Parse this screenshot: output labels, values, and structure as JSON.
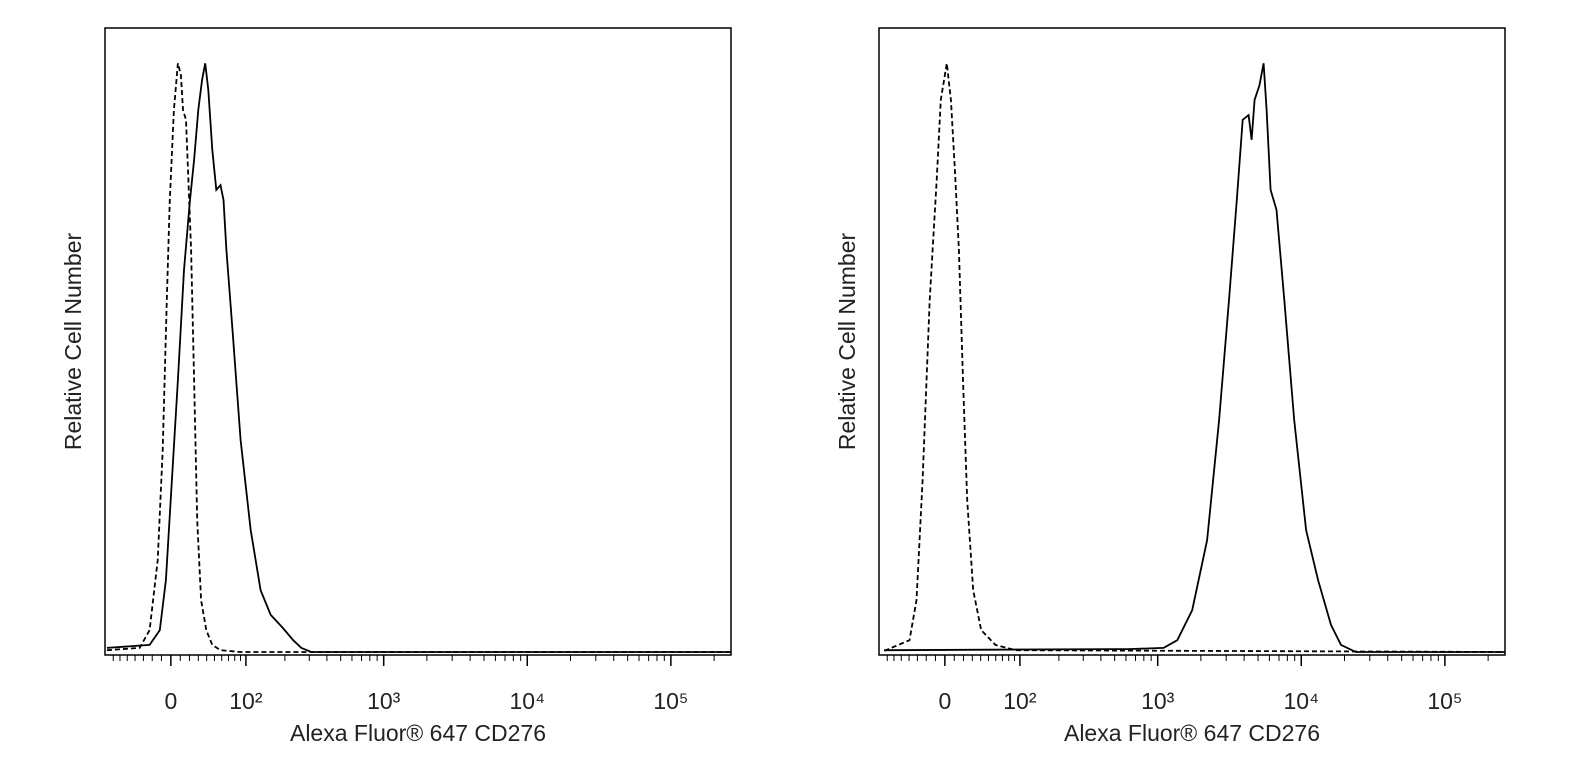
{
  "chart_data": [
    {
      "type": "line",
      "xlabel": "Alexa Fluor® 647 CD276",
      "ylabel": "Relative Cell Number",
      "xscale": "asinh",
      "xlim": [
        -80,
        262144
      ],
      "ylim": [
        0,
        106
      ],
      "xticks": [
        {
          "value": 0,
          "label": "0"
        },
        {
          "value": 100,
          "label": "10²"
        },
        {
          "value": 1000,
          "label": "10³"
        },
        {
          "value": 10000,
          "label": "10⁴"
        },
        {
          "value": 100000,
          "label": "10⁵"
        }
      ],
      "xminor": [
        -70,
        -60,
        -50,
        -40,
        -30,
        -20,
        -10,
        10,
        20,
        30,
        40,
        50,
        60,
        70,
        80,
        90,
        200,
        300,
        400,
        500,
        600,
        700,
        800,
        900,
        2000,
        3000,
        4000,
        5000,
        6000,
        7000,
        8000,
        9000,
        20000,
        30000,
        40000,
        50000,
        60000,
        70000,
        80000,
        90000,
        200000
      ],
      "series": [
        {
          "color": "#000000",
          "style": "dashed",
          "x": [
            -80,
            -34.5,
            -22.9,
            -14.0,
            -8.6,
            -4.3,
            -1.1,
            3.2,
            7.5,
            10.7,
            12.9,
            16.2,
            18.4,
            21.8,
            25.2,
            28.7,
            33.3,
            39.5,
            47.2,
            58.2,
            90,
            262144
          ],
          "values": [
            0.3,
            0.7,
            3.7,
            15.6,
            34.3,
            59.8,
            76.8,
            92.1,
            100,
            98.0,
            92.1,
            90.4,
            81.9,
            68.3,
            46.2,
            22.4,
            8.8,
            3.7,
            1.2,
            0.3,
            0,
            0
          ]
        },
        {
          "color": "#000000",
          "style": "solid",
          "x": [
            -80,
            -22.9,
            -11.8,
            -5.3,
            1.1,
            7.5,
            14.0,
            20.6,
            25.2,
            30.0,
            34.5,
            38.2,
            42.0,
            47.2,
            52.5,
            58.2,
            62.5,
            66.9,
            76.4,
            90.2,
            109.6,
            131.4,
            157,
            193,
            230,
            263,
            310,
            262144
          ],
          "values": [
            0.7,
            1.2,
            3.7,
            12.2,
            29.2,
            46.2,
            64.9,
            76.8,
            83.6,
            92.1,
            97.2,
            100,
            95.5,
            85.3,
            78.5,
            79.3,
            76.8,
            68.3,
            54.7,
            36.0,
            20.7,
            10.5,
            6.3,
            4.1,
            2.0,
            0.7,
            0,
            0
          ]
        }
      ]
    },
    {
      "type": "line",
      "xlabel": "Alexa Fluor® 647 CD276",
      "ylabel": "Relative Cell Number",
      "xscale": "asinh",
      "xlim": [
        -80,
        262144
      ],
      "ylim": [
        0,
        106
      ],
      "xticks": [
        {
          "value": 0,
          "label": "0"
        },
        {
          "value": 100,
          "label": "10²"
        },
        {
          "value": 1000,
          "label": "10³"
        },
        {
          "value": 10000,
          "label": "10⁴"
        },
        {
          "value": 100000,
          "label": "10⁵"
        }
      ],
      "xminor": [
        -70,
        -60,
        -50,
        -40,
        -30,
        -20,
        -10,
        10,
        20,
        30,
        40,
        50,
        60,
        70,
        80,
        90,
        200,
        300,
        400,
        500,
        600,
        700,
        800,
        900,
        2000,
        3000,
        4000,
        5000,
        6000,
        7000,
        8000,
        9000,
        20000,
        30000,
        40000,
        50000,
        60000,
        70000,
        80000,
        90000,
        200000
      ],
      "series": [
        {
          "color": "#000000",
          "style": "dashed",
          "x": [
            -74.5,
            -39.5,
            -31.0,
            -24.1,
            -16.2,
            -8.6,
            -4.3,
            2.1,
            6.4,
            10.7,
            15.0,
            19.5,
            24.1,
            31.0,
            40.7,
            59.6,
            92,
            262144
          ],
          "values": [
            0.2,
            2.0,
            8.8,
            29.2,
            59.8,
            80.2,
            93.8,
            100,
            93.8,
            81.9,
            68.3,
            46.2,
            25.8,
            10.5,
            3.7,
            1.2,
            0.3,
            0
          ]
        },
        {
          "color": "#000000",
          "style": "solid",
          "x": [
            -75,
            500,
            620,
            1100,
            1370,
            1740,
            2210,
            2680,
            3140,
            3560,
            3910,
            4300,
            4510,
            4730,
            5120,
            5470,
            5740,
            6120,
            6720,
            7620,
            8930,
            10800,
            13100,
            16100,
            18900,
            24000,
            262144
          ],
          "values": [
            0.3,
            0.5,
            0.5,
            0.7,
            2.0,
            7.1,
            19.0,
            39.4,
            59.8,
            76.8,
            90.4,
            91.2,
            87.0,
            93.8,
            96.3,
            100,
            92.1,
            78.5,
            75.1,
            59.8,
            39.4,
            20.7,
            12.2,
            4.6,
            1.2,
            0,
            0
          ]
        }
      ]
    }
  ]
}
